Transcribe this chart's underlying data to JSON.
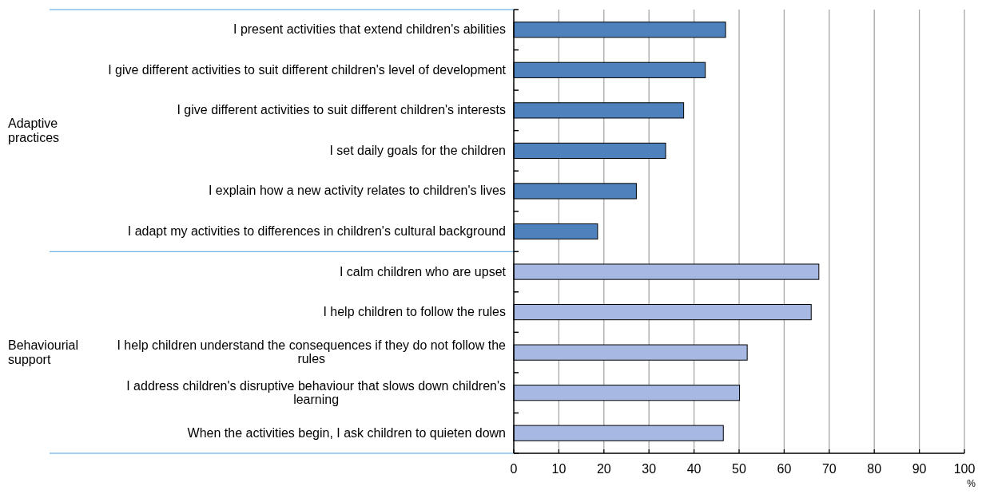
{
  "chart_data": {
    "type": "bar",
    "orientation": "horizontal",
    "categories": [
      "I present activities that extend children's abilities",
      "I give different activities to suit different children's level of development",
      "I give different activities to suit different children's interests",
      "I set daily goals for the children",
      "I explain how a new activity relates to children's lives",
      "I adapt my activities to differences in children's cultural background",
      "I calm children who are upset",
      "I help children to follow the rules",
      "I help children understand the consequences if they do not follow the rules",
      "I address children's disruptive behaviour that slows down children's learning",
      "When the activities begin, I ask children to quieten down"
    ],
    "values": [
      47.0,
      42.5,
      37.7,
      33.7,
      27.2,
      18.6,
      67.7,
      66.0,
      51.8,
      50.1,
      46.5
    ],
    "colors": [
      "#4f81bd",
      "#4f81bd",
      "#4f81bd",
      "#4f81bd",
      "#4f81bd",
      "#4f81bd",
      "#a7b9e3",
      "#a7b9e3",
      "#a7b9e3",
      "#a7b9e3",
      "#a7b9e3"
    ],
    "xlim": [
      0,
      100
    ],
    "xticks": [
      0,
      10,
      20,
      30,
      40,
      50,
      60,
      70,
      80,
      90,
      100
    ],
    "xlabel": "%",
    "grid": "x",
    "annotations": [
      "Adaptive practices",
      "Behaviourial support"
    ]
  }
}
